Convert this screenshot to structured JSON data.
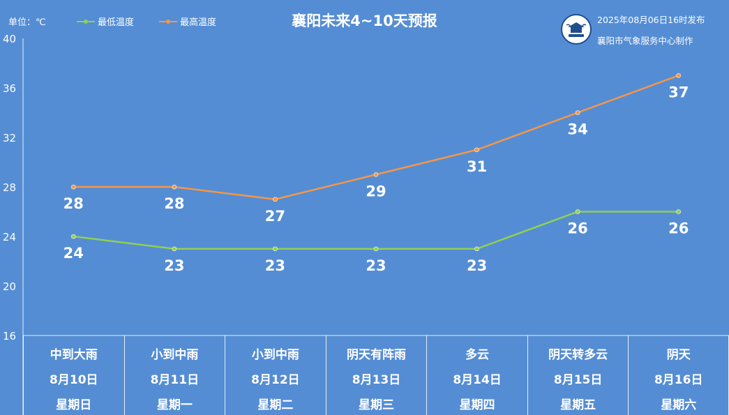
{
  "header": {
    "unit_label": "单位：℃",
    "title": "襄阳未来4~10天预报",
    "issue_time": "2025年08月06日16时发布",
    "organization": "襄阳市气象服务中心制作"
  },
  "logo_icon": "xiangyang-meteorological-logo",
  "colors": {
    "background": "#548dd4",
    "low_line": "#92d050",
    "high_line": "#f79646",
    "text": "#ffffff"
  },
  "chart_data": {
    "type": "line",
    "ylim": [
      16,
      40
    ],
    "yticks": [
      16,
      20,
      24,
      28,
      32,
      36,
      40
    ],
    "grid": false,
    "legend_placement": "top-left",
    "series": [
      {
        "name": "最低温度",
        "color": "#92d050",
        "values": [
          24,
          23,
          23,
          23,
          23,
          26,
          26
        ]
      },
      {
        "name": "最高温度",
        "color": "#f79646",
        "values": [
          28,
          28,
          27,
          29,
          31,
          34,
          37
        ]
      }
    ]
  },
  "days": [
    {
      "weather": "中到大雨",
      "date": "8月10日",
      "weekday": "星期日"
    },
    {
      "weather": "小到中雨",
      "date": "8月11日",
      "weekday": "星期一"
    },
    {
      "weather": "小到中雨",
      "date": "8月12日",
      "weekday": "星期二"
    },
    {
      "weather": "阴天有阵雨",
      "date": "8月13日",
      "weekday": "星期三"
    },
    {
      "weather": "多云",
      "date": "8月14日",
      "weekday": "星期四"
    },
    {
      "weather": "阴天转多云",
      "date": "8月15日",
      "weekday": "星期五"
    },
    {
      "weather": "阴天",
      "date": "8月16日",
      "weekday": "星期六"
    }
  ]
}
